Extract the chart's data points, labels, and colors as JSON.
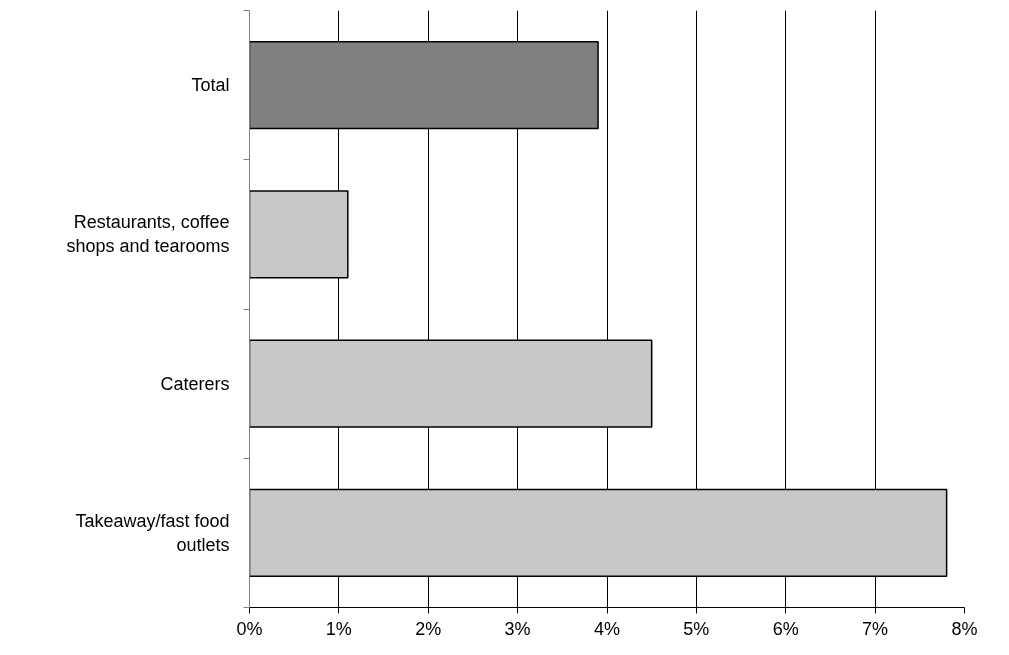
{
  "chart_data": {
    "type": "bar",
    "orientation": "horizontal",
    "categories": [
      "Total",
      "Restaurants, coffee\nshops and tearooms",
      "Caterers",
      "Takeaway/fast food\noutlets"
    ],
    "values": [
      3.9,
      1.1,
      4.5,
      7.8
    ],
    "colors": [
      "#808080",
      "#c8c8c8",
      "#c8c8c8",
      "#c8c8c8"
    ],
    "xlim": [
      0,
      8
    ],
    "xticks": [
      {
        "value": 0,
        "label": "0%"
      },
      {
        "value": 1,
        "label": "1%"
      },
      {
        "value": 2,
        "label": "2%"
      },
      {
        "value": 3,
        "label": "3%"
      },
      {
        "value": 4,
        "label": "4%"
      },
      {
        "value": 5,
        "label": "5%"
      },
      {
        "value": 6,
        "label": "6%"
      },
      {
        "value": 7,
        "label": "7%"
      },
      {
        "value": 8,
        "label": "8%"
      }
    ],
    "grid": "x"
  }
}
